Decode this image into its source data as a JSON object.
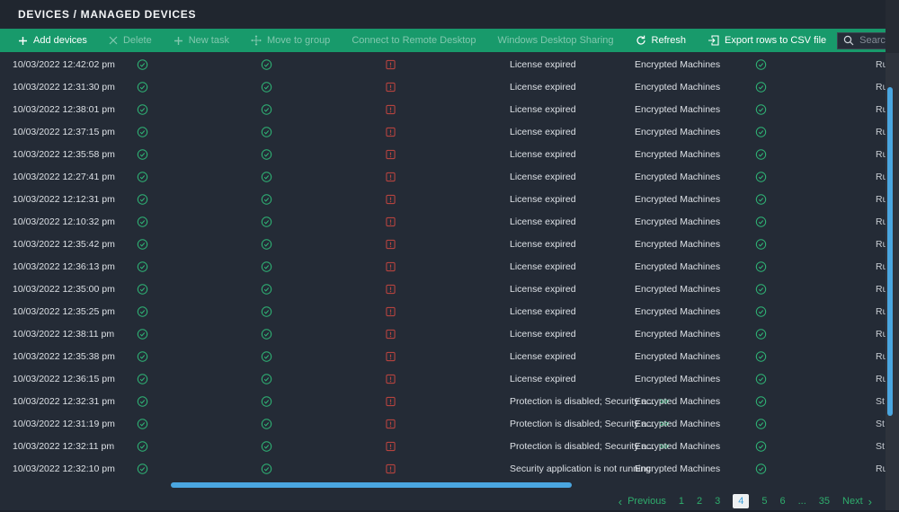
{
  "header": {
    "breadcrumb": "DEVICES  /  MANAGED DEVICES"
  },
  "toolbar": {
    "buttons": [
      {
        "label": "Add devices",
        "enabled": true
      },
      {
        "label": "Delete",
        "enabled": false
      },
      {
        "label": "New task",
        "enabled": false
      },
      {
        "label": "Move to group",
        "enabled": false
      },
      {
        "label": "Connect to Remote Desktop",
        "enabled": false
      },
      {
        "label": "Windows Desktop Sharing",
        "enabled": false
      },
      {
        "label": "Refresh",
        "enabled": true
      },
      {
        "label": "Export rows to CSV file",
        "enabled": true
      }
    ],
    "search_placeholder": "Search..."
  },
  "table": {
    "expand_label": ">>",
    "rows": [
      {
        "time": "10/03/2022 12:42:02 pm",
        "status": "License expired",
        "more": false,
        "group": "Encrypted Machines",
        "state": "Ru"
      },
      {
        "time": "10/03/2022 12:31:30 pm",
        "status": "License expired",
        "more": false,
        "group": "Encrypted Machines",
        "state": "Ru"
      },
      {
        "time": "10/03/2022 12:38:01 pm",
        "status": "License expired",
        "more": false,
        "group": "Encrypted Machines",
        "state": "Ru"
      },
      {
        "time": "10/03/2022 12:37:15 pm",
        "status": "License expired",
        "more": false,
        "group": "Encrypted Machines",
        "state": "Ru"
      },
      {
        "time": "10/03/2022 12:35:58 pm",
        "status": "License expired",
        "more": false,
        "group": "Encrypted Machines",
        "state": "Ru"
      },
      {
        "time": "10/03/2022 12:27:41 pm",
        "status": "License expired",
        "more": false,
        "group": "Encrypted Machines",
        "state": "Ru"
      },
      {
        "time": "10/03/2022 12:12:31 pm",
        "status": "License expired",
        "more": false,
        "group": "Encrypted Machines",
        "state": "Ru"
      },
      {
        "time": "10/03/2022 12:10:32 pm",
        "status": "License expired",
        "more": false,
        "group": "Encrypted Machines",
        "state": "Ru"
      },
      {
        "time": "10/03/2022 12:35:42 pm",
        "status": "License expired",
        "more": false,
        "group": "Encrypted Machines",
        "state": "Ru"
      },
      {
        "time": "10/03/2022 12:36:13 pm",
        "status": "License expired",
        "more": false,
        "group": "Encrypted Machines",
        "state": "Ru"
      },
      {
        "time": "10/03/2022 12:35:00 pm",
        "status": "License expired",
        "more": false,
        "group": "Encrypted Machines",
        "state": "Ru"
      },
      {
        "time": "10/03/2022 12:35:25 pm",
        "status": "License expired",
        "more": false,
        "group": "Encrypted Machines",
        "state": "Ru"
      },
      {
        "time": "10/03/2022 12:38:11 pm",
        "status": "License expired",
        "more": false,
        "group": "Encrypted Machines",
        "state": "Ru"
      },
      {
        "time": "10/03/2022 12:35:38 pm",
        "status": "License expired",
        "more": false,
        "group": "Encrypted Machines",
        "state": "Ru"
      },
      {
        "time": "10/03/2022 12:36:15 pm",
        "status": "License expired",
        "more": false,
        "group": "Encrypted Machines",
        "state": "Ru"
      },
      {
        "time": "10/03/2022 12:32:31 pm",
        "status": "Protection is disabled; Security a...",
        "more": true,
        "group": "Encrypted Machines",
        "state": "St"
      },
      {
        "time": "10/03/2022 12:31:19 pm",
        "status": "Protection is disabled; Security a...",
        "more": true,
        "group": "Encrypted Machines",
        "state": "St"
      },
      {
        "time": "10/03/2022 12:32:11 pm",
        "status": "Protection is disabled; Security a...",
        "more": true,
        "group": "Encrypted Machines",
        "state": "St"
      },
      {
        "time": "10/03/2022 12:32:10 pm",
        "status": "Security application is not running",
        "more": false,
        "group": "Encrypted Machines",
        "state": "Ru"
      }
    ]
  },
  "pagination": {
    "previous_label": "Previous",
    "next_label": "Next",
    "pages": [
      "1",
      "2",
      "3",
      "4",
      "5",
      "6",
      "...",
      "35"
    ],
    "current_page": "4"
  },
  "colors": {
    "toolbar_green": "#189a6b",
    "ok_green": "#2fb576",
    "critical_red": "#b5433f",
    "scrollbar_blue": "#4aa6e0",
    "current_page_text": "#3da0da"
  }
}
